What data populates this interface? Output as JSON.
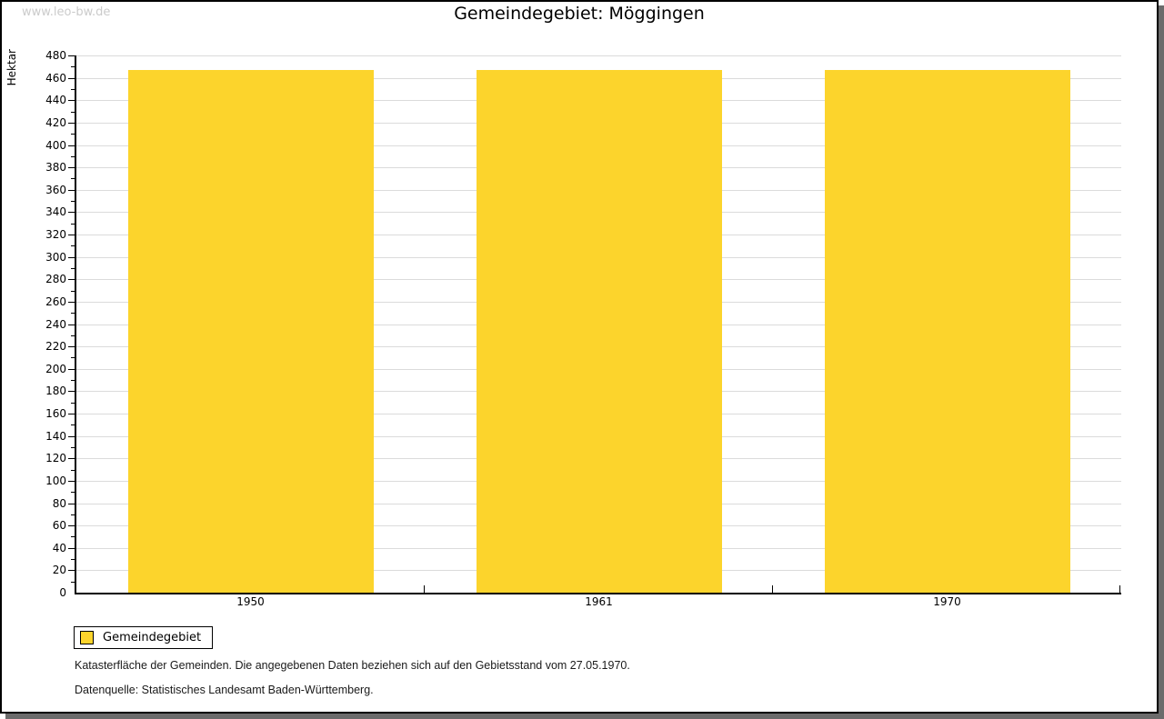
{
  "watermark": "www.leo-bw.de",
  "chart_data": {
    "type": "bar",
    "title": "Gemeindegebiet: Möggingen",
    "ylabel": "Hektar",
    "xlabel": "",
    "categories": [
      "1950",
      "1961",
      "1970"
    ],
    "series": [
      {
        "name": "Gemeindegebiet",
        "values": [
          467,
          467,
          467
        ],
        "color": "#FCD42C"
      }
    ],
    "ylim": [
      0,
      480
    ],
    "ytick_step": 20,
    "minor_tick_step": 10,
    "grid": true,
    "legend_position": "bottom-left",
    "unit": "Hektar"
  },
  "legend": {
    "items": [
      {
        "label": "Gemeindegebiet",
        "color": "#FCD42C"
      }
    ]
  },
  "footnotes": [
    "Katasterfläche der Gemeinden. Die angegebenen Daten beziehen sich auf den Gebietsstand vom 27.05.1970.",
    "Datenquelle: Statistisches Landesamt Baden-Württemberg."
  ],
  "colors": {
    "bar": "#FCD42C",
    "axis": "#000000",
    "grid": "#DBDBDB",
    "watermark_text": "#CBCBCB",
    "frame_shadow": "#6B6B6B",
    "background": "#FFFFFF"
  }
}
